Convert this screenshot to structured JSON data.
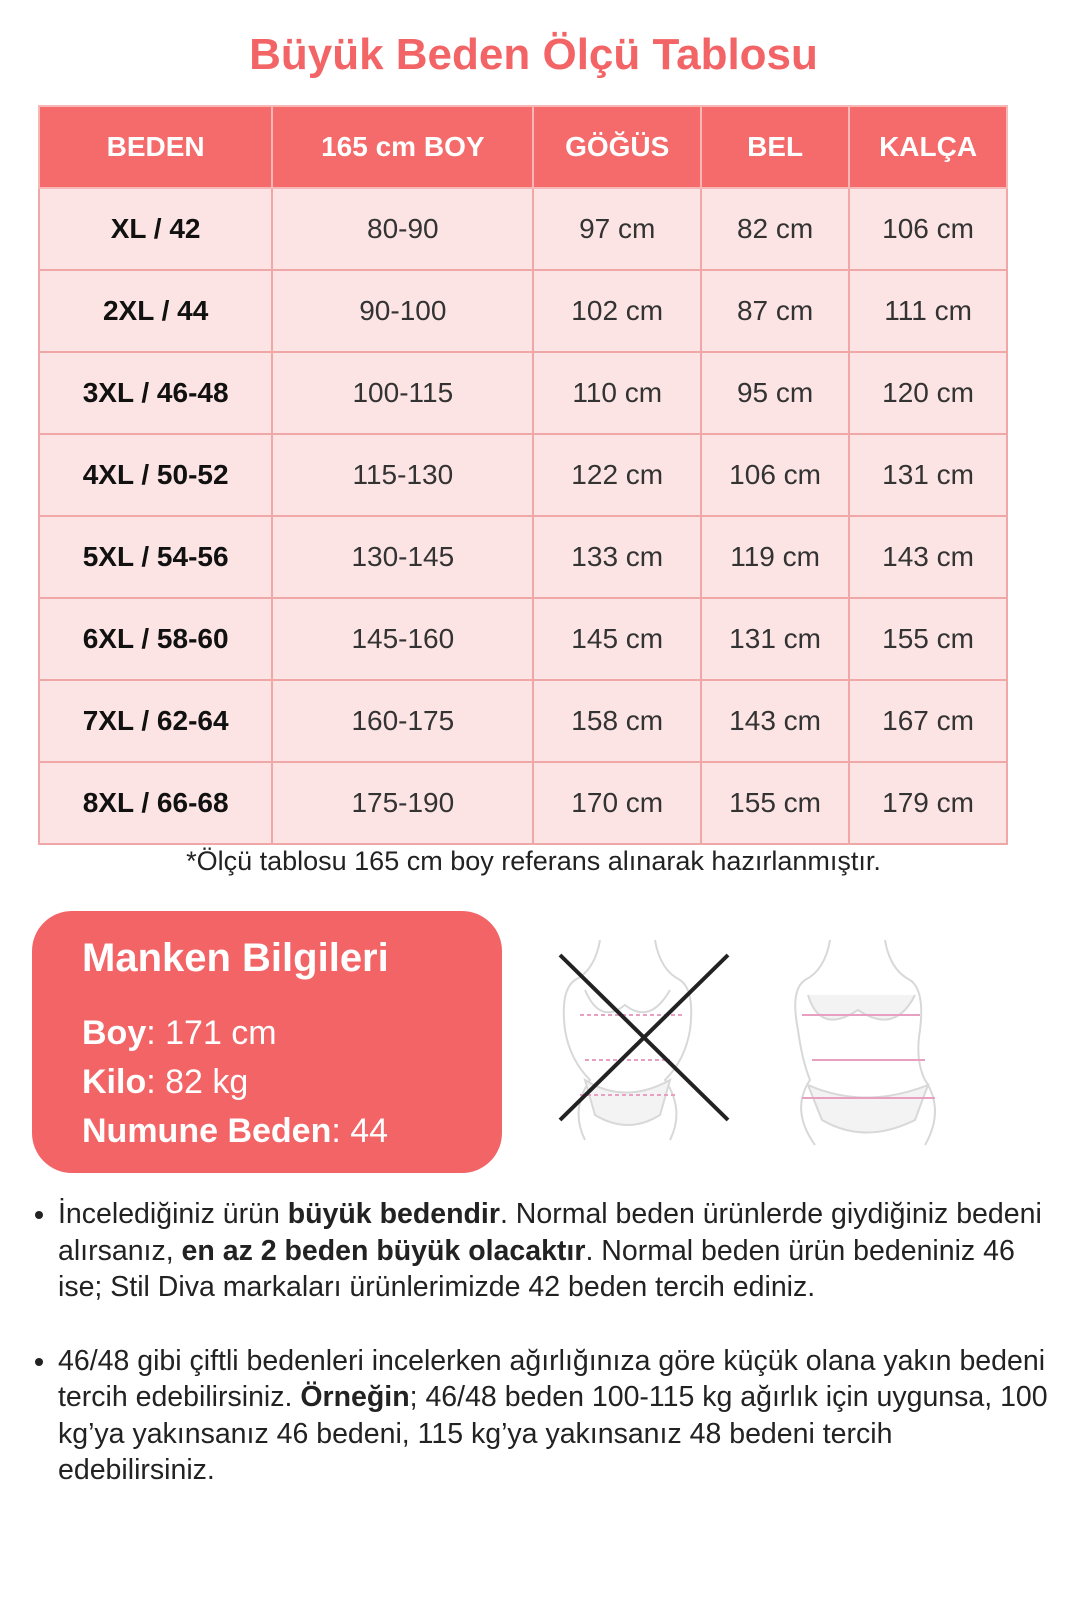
{
  "title": "Büyük Beden Ölçü Tablosu",
  "table": {
    "header": [
      "BEDEN",
      "165 cm BOY",
      "GÖĞÜS",
      "BEL",
      "KALÇA"
    ],
    "rows": [
      [
        "XL / 42",
        "80-90",
        "97 cm",
        "82 cm",
        "106 cm"
      ],
      [
        "2XL / 44",
        "90-100",
        "102 cm",
        "87 cm",
        "111 cm"
      ],
      [
        "3XL / 46-48",
        "100-115",
        "110 cm",
        "95 cm",
        "120 cm"
      ],
      [
        "4XL / 50-52",
        "115-130",
        "122 cm",
        "106 cm",
        "131 cm"
      ],
      [
        "5XL / 54-56",
        "130-145",
        "133 cm",
        "119 cm",
        "143 cm"
      ],
      [
        "6XL / 58-60",
        "145-160",
        "145 cm",
        "131 cm",
        "155 cm"
      ],
      [
        "7XL / 62-64",
        "160-175",
        "158 cm",
        "143 cm",
        "167 cm"
      ],
      [
        "8XL / 66-68",
        "175-190",
        "170 cm",
        "155 cm",
        "179 cm"
      ]
    ]
  },
  "note": "*Ölçü tablosu 165 cm boy referans alınarak hazırlanmıştır.",
  "model": {
    "title": "Manken Bilgileri",
    "lines": [
      {
        "runs": [
          {
            "text": "Boy",
            "bold": true
          },
          {
            "text": ": 171 cm"
          }
        ]
      },
      {
        "runs": [
          {
            "text": "Kilo",
            "bold": true
          },
          {
            "text": ": 82 kg"
          }
        ]
      },
      {
        "runs": [
          {
            "text": "Numune Beden",
            "bold": true
          },
          {
            "text": ": 44"
          }
        ]
      }
    ]
  },
  "paragraphs": [
    {
      "runs": [
        {
          "text": "İncelediğiniz ürün "
        },
        {
          "text": "büyük bedendir",
          "bold": true
        },
        {
          "text": ". Normal beden ürünlerde giydiğiniz bedeni alırsanız, "
        },
        {
          "text": "en az 2 beden büyük olacaktır",
          "bold": true
        },
        {
          "text": ". Normal beden ürün bedeniniz 46 ise; Stil Diva markaları ürünlerimizde 42 beden tercih ediniz."
        }
      ]
    },
    {
      "runs": [
        {
          "text": "46/48 gibi çiftli bedenleri incelerken ağırlığınıza göre küçük olana yakın bedeni tercih edebilirsiniz. "
        },
        {
          "text": "Örneğin",
          "bold": true
        },
        {
          "text": "; 46/48 beden 100-115 kg ağırlık için uygunsa, 100 kg’ya yakınsanız 46 bedeni, 115 kg’ya yakınsanız 48 bedeni tercih edebilirsiniz."
        }
      ]
    }
  ]
}
